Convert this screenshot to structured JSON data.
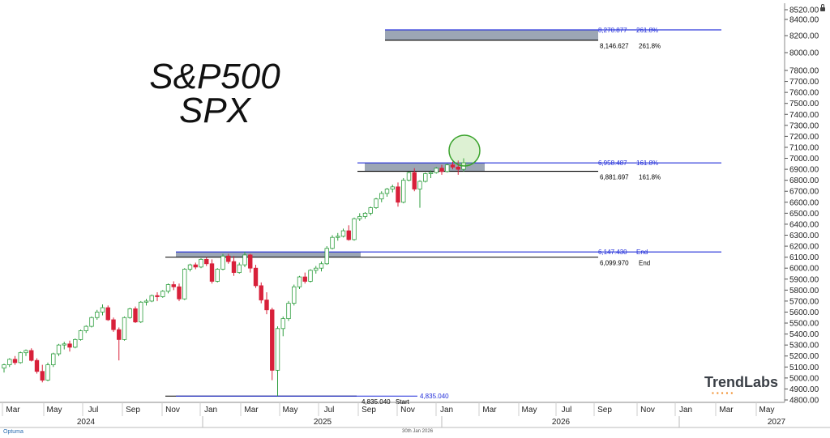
{
  "header": {
    "title_line1": "S&P500",
    "title_line2": "SPX"
  },
  "brand": {
    "logo_text": "TrendLabs",
    "platform": "Optuma",
    "footer_date": "30th Jan 2026"
  },
  "colors": {
    "up": "#2e9e3e",
    "down": "#d8203a",
    "zone": "#9ca6b5",
    "fib_line": "#1f2bd9",
    "base_line": "#000000",
    "circle": "#3aa32c"
  },
  "chart_data": {
    "type": "candlestick",
    "title": "S&P500 SPX",
    "ylim": [
      4800,
      8520
    ],
    "y_ticks": [
      "8520.00",
      "8400.00",
      "8200.00",
      "8000.00",
      "7800.00",
      "7700.00",
      "7600.00",
      "7500.00",
      "7400.00",
      "7300.00",
      "7200.00",
      "7100.00",
      "7000.00",
      "6900.00",
      "6800.00",
      "6700.00",
      "6600.00",
      "6500.00",
      "6400.00",
      "6300.00",
      "6200.00",
      "6100.00",
      "6000.00",
      "5900.00",
      "5800.00",
      "5700.00",
      "5600.00",
      "5500.00",
      "5400.00",
      "5300.00",
      "5200.00",
      "5100.00",
      "5000.00",
      "4900.00",
      "4800.00"
    ],
    "x_months": [
      "Mar",
      "May",
      "Jul",
      "Sep",
      "Nov",
      "Jan",
      "Mar",
      "May",
      "Jul",
      "Sep",
      "Nov",
      "Jan",
      "Mar",
      "May",
      "Jul",
      "Sep",
      "Nov",
      "Jan",
      "Mar",
      "May"
    ],
    "x_years": [
      "2024",
      "2025",
      "2026",
      "2027"
    ],
    "series": [
      {
        "candles": [
          [
            5090,
            5130,
            5050,
            5120
          ],
          [
            5120,
            5180,
            5100,
            5170
          ],
          [
            5170,
            5200,
            5120,
            5140
          ],
          [
            5140,
            5240,
            5130,
            5230
          ],
          [
            5230,
            5260,
            5200,
            5250
          ],
          [
            5250,
            5270,
            5150,
            5160
          ],
          [
            5160,
            5180,
            5040,
            5060
          ],
          [
            5060,
            5120,
            4960,
            4980
          ],
          [
            4980,
            5140,
            4970,
            5120
          ],
          [
            5120,
            5230,
            5100,
            5220
          ],
          [
            5220,
            5310,
            5200,
            5300
          ],
          [
            5300,
            5330,
            5260,
            5310
          ],
          [
            5310,
            5340,
            5240,
            5280
          ],
          [
            5280,
            5360,
            5270,
            5350
          ],
          [
            5350,
            5440,
            5340,
            5430
          ],
          [
            5430,
            5480,
            5410,
            5470
          ],
          [
            5470,
            5560,
            5460,
            5550
          ],
          [
            5550,
            5620,
            5530,
            5600
          ],
          [
            5600,
            5670,
            5570,
            5640
          ],
          [
            5640,
            5660,
            5520,
            5530
          ],
          [
            5530,
            5550,
            5420,
            5440
          ],
          [
            5440,
            5460,
            5160,
            5350
          ],
          [
            5350,
            5560,
            5340,
            5550
          ],
          [
            5550,
            5640,
            5540,
            5630
          ],
          [
            5630,
            5650,
            5500,
            5510
          ],
          [
            5510,
            5700,
            5500,
            5690
          ],
          [
            5690,
            5720,
            5660,
            5700
          ],
          [
            5700,
            5760,
            5690,
            5750
          ],
          [
            5750,
            5780,
            5700,
            5740
          ],
          [
            5740,
            5800,
            5730,
            5790
          ],
          [
            5790,
            5860,
            5770,
            5850
          ],
          [
            5850,
            5880,
            5800,
            5830
          ],
          [
            5830,
            5860,
            5700,
            5720
          ],
          [
            5720,
            6000,
            5710,
            5990
          ],
          [
            5990,
            6040,
            5970,
            6030
          ],
          [
            6030,
            6050,
            5990,
            6010
          ],
          [
            6010,
            6090,
            6000,
            6080
          ],
          [
            6080,
            6100,
            6020,
            6040
          ],
          [
            6040,
            6080,
            5860,
            5880
          ],
          [
            5880,
            6000,
            5870,
            5990
          ],
          [
            5990,
            6130,
            5980,
            6110
          ],
          [
            6110,
            6130,
            6040,
            6060
          ],
          [
            6060,
            6110,
            5930,
            5960
          ],
          [
            5960,
            6050,
            5950,
            6030
          ],
          [
            6030,
            6150,
            6010,
            6120
          ],
          [
            6120,
            6130,
            5960,
            6000
          ],
          [
            6000,
            6030,
            5820,
            5840
          ],
          [
            5840,
            5870,
            5680,
            5710
          ],
          [
            5710,
            5780,
            5580,
            5620
          ],
          [
            5620,
            5640,
            4980,
            5070
          ],
          [
            5070,
            5470,
            4835,
            5450
          ],
          [
            5450,
            5560,
            5380,
            5540
          ],
          [
            5540,
            5700,
            5520,
            5680
          ],
          [
            5680,
            5850,
            5660,
            5830
          ],
          [
            5830,
            5930,
            5810,
            5920
          ],
          [
            5920,
            5960,
            5860,
            5880
          ],
          [
            5880,
            5990,
            5870,
            5980
          ],
          [
            5980,
            6020,
            5950,
            6000
          ],
          [
            6000,
            6060,
            5970,
            6040
          ],
          [
            6040,
            6200,
            6030,
            6180
          ],
          [
            6180,
            6300,
            6170,
            6280
          ],
          [
            6280,
            6320,
            6250,
            6290
          ],
          [
            6290,
            6360,
            6280,
            6340
          ],
          [
            6340,
            6390,
            6250,
            6260
          ],
          [
            6260,
            6460,
            6250,
            6450
          ],
          [
            6450,
            6500,
            6430,
            6470
          ],
          [
            6470,
            6510,
            6450,
            6500
          ],
          [
            6500,
            6560,
            6480,
            6550
          ],
          [
            6550,
            6640,
            6540,
            6630
          ],
          [
            6630,
            6700,
            6600,
            6680
          ],
          [
            6680,
            6730,
            6650,
            6720
          ],
          [
            6720,
            6760,
            6690,
            6740
          ],
          [
            6740,
            6780,
            6560,
            6600
          ],
          [
            6600,
            6820,
            6590,
            6800
          ],
          [
            6800,
            6880,
            6790,
            6870
          ],
          [
            6870,
            6910,
            6700,
            6720
          ],
          [
            6720,
            6800,
            6550,
            6790
          ],
          [
            6790,
            6870,
            6780,
            6860
          ],
          [
            6860,
            6890,
            6820,
            6870
          ],
          [
            6870,
            6920,
            6860,
            6910
          ],
          [
            6910,
            6940,
            6850,
            6880
          ],
          [
            6880,
            6950,
            6870,
            6940
          ],
          [
            6940,
            6970,
            6900,
            6920
          ],
          [
            6920,
            6980,
            6850,
            6900
          ],
          [
            6900,
            7000,
            6880,
            6960
          ]
        ]
      }
    ],
    "fib_levels": [
      {
        "value": 8270.877,
        "label": "8,270.877",
        "tag": "261.8%",
        "color": "blue"
      },
      {
        "value": 8146.627,
        "label": "8,146.627",
        "tag": "261.8%",
        "color": "black"
      },
      {
        "value": 6958.487,
        "label": "6,958.487",
        "tag": "161.8%",
        "color": "blue"
      },
      {
        "value": 6881.697,
        "label": "6,881.697",
        "tag": "161.8%",
        "color": "black"
      },
      {
        "value": 6147.43,
        "label": "6,147.430",
        "tag": "End",
        "color": "blue"
      },
      {
        "value": 6099.97,
        "label": "6,099.970",
        "tag": "End",
        "color": "black"
      },
      {
        "value": 4835.04,
        "label": "4,835.040",
        "tag": "Start",
        "color": "black"
      },
      {
        "value": 4835.04,
        "label": "4,835.040",
        "tag": "",
        "color": "blue"
      }
    ]
  }
}
